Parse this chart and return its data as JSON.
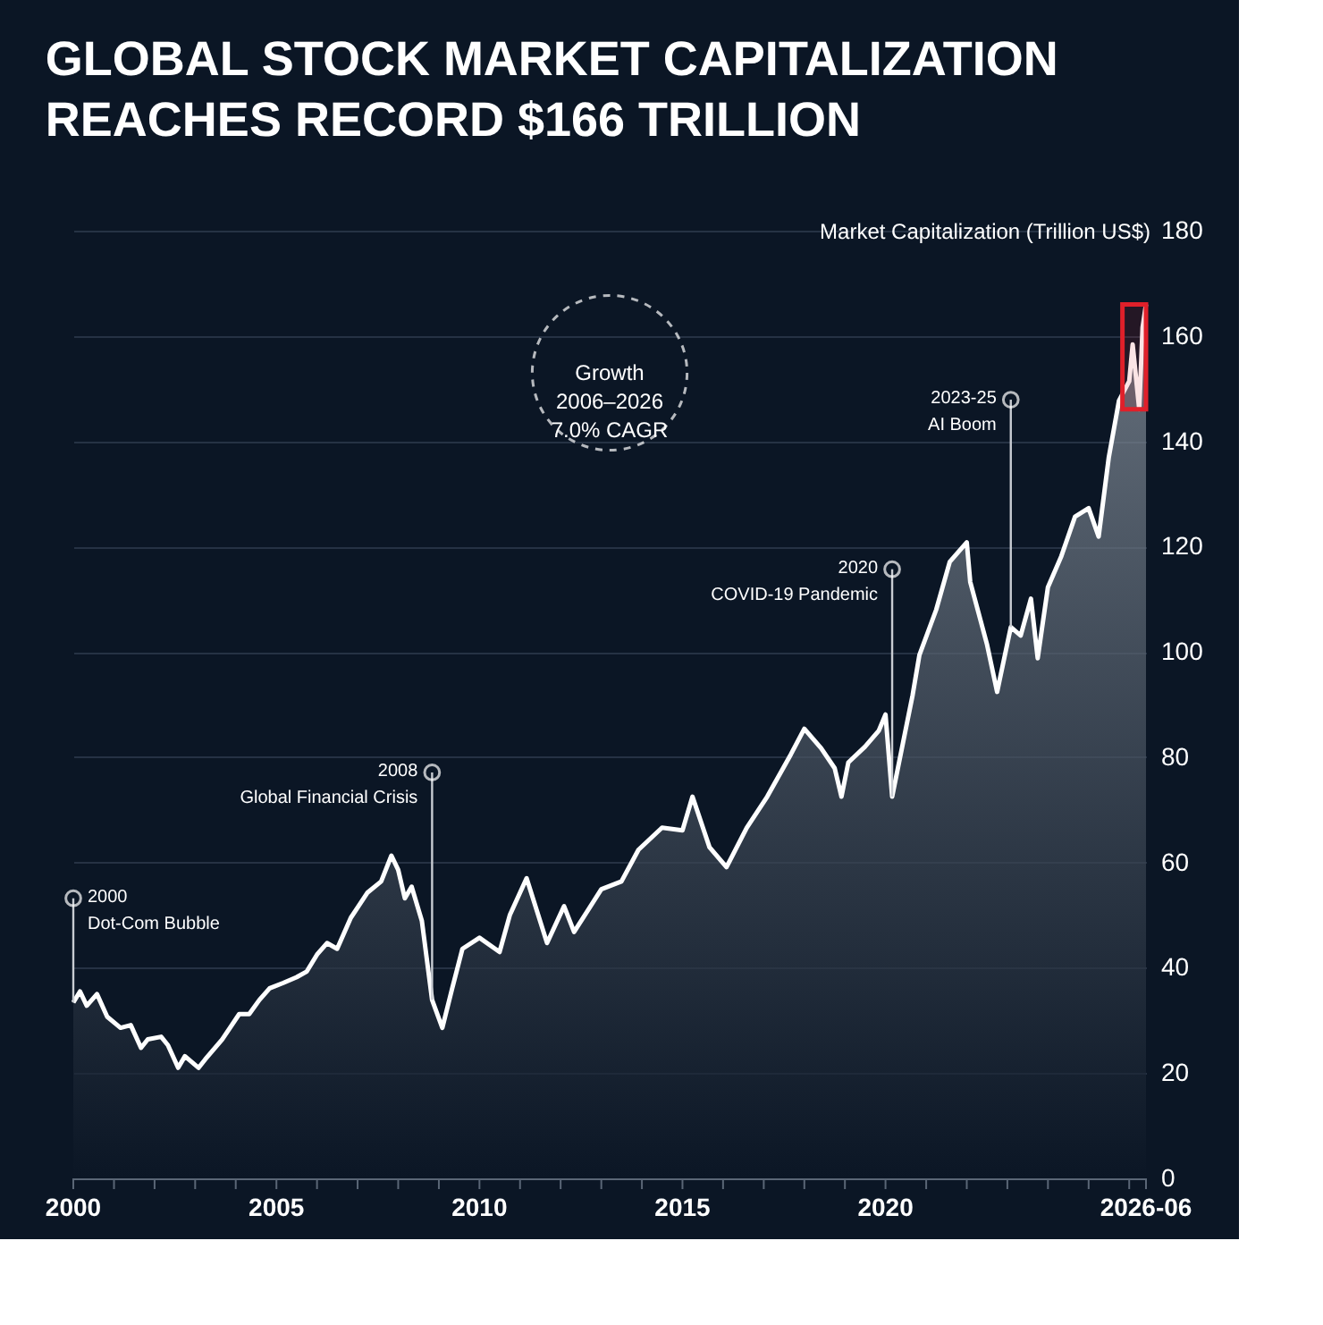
{
  "chart_data": {
    "type": "area",
    "title": "GLOBAL STOCK MARKET CAPITALIZATION REACHES RECORD $166 TRILLION",
    "ylabel": "Market Capitalization (Trillion US$)",
    "x": [
      "2000-01",
      "2000-03",
      "2000-05",
      "2000-08",
      "2000-11",
      "2001-03",
      "2001-06",
      "2001-09",
      "2001-11",
      "2002-03",
      "2002-05",
      "2002-08",
      "2002-10",
      "2003-02",
      "2003-04",
      "2003-09",
      "2004-02",
      "2004-05",
      "2004-08",
      "2004-11",
      "2005-03",
      "2005-07",
      "2005-10",
      "2006-01",
      "2006-04",
      "2006-07",
      "2006-11",
      "2007-04",
      "2007-08",
      "2007-11",
      "2008-01",
      "2008-03",
      "2008-05",
      "2008-08",
      "2008-11",
      "2009-02",
      "2009-05",
      "2009-08",
      "2010-01",
      "2010-07",
      "2010-10",
      "2011-03",
      "2011-09",
      "2012-02",
      "2012-05",
      "2013-01",
      "2013-07",
      "2013-12",
      "2014-07",
      "2015-01",
      "2015-04",
      "2015-09",
      "2016-02",
      "2016-08",
      "2017-02",
      "2017-09",
      "2018-01",
      "2018-06",
      "2018-10",
      "2018-12",
      "2019-02",
      "2019-07",
      "2019-11",
      "2020-01",
      "2020-03",
      "2020-09",
      "2020-11",
      "2021-04",
      "2021-08",
      "2022-01",
      "2022-02",
      "2022-07",
      "2022-10",
      "2023-02",
      "2023-05",
      "2023-08",
      "2023-10",
      "2024-01",
      "2024-05",
      "2024-09",
      "2025-01",
      "2025-04",
      "2025-07",
      "2025-10",
      "2026-01",
      "2026-02",
      "2026-04",
      "2026-05",
      "2026-06"
    ],
    "series": [
      {
        "color": "#ffffff",
        "values": [
          33.4,
          35.5,
          32.8,
          35.0,
          30.7,
          28.6,
          29.1,
          24.8,
          26.4,
          26.9,
          25.3,
          21.0,
          23.2,
          21.0,
          22.6,
          26.4,
          31.2,
          31.2,
          33.9,
          36.1,
          37.1,
          38.2,
          39.3,
          42.5,
          44.7,
          43.6,
          49.5,
          54.3,
          56.4,
          61.3,
          58.6,
          53.2,
          55.4,
          48.9,
          33.9,
          28.6,
          36.1,
          43.6,
          45.7,
          43.0,
          50.0,
          57.0,
          44.7,
          51.7,
          46.8,
          54.9,
          56.4,
          62.4,
          66.6,
          66.1,
          72.5,
          62.9,
          59.1,
          66.6,
          72.5,
          80.5,
          85.4,
          81.7,
          77.9,
          72.5,
          79.0,
          82.0,
          85.0,
          88.1,
          72.5,
          91.8,
          99.4,
          108.0,
          117.1,
          120.8,
          113.3,
          101.5,
          92.4,
          104.7,
          103.1,
          110.1,
          98.8,
          112.3,
          118.2,
          125.7,
          127.3,
          121.9,
          136.9,
          147.7,
          151.4,
          158.4,
          146.1,
          161.6,
          166.0
        ]
      }
    ],
    "xlim": [
      "2000-01",
      "2026-06"
    ],
    "xticks": [
      {
        "value": "2000-01",
        "label": "2000"
      },
      {
        "value": "2001-01",
        "label": null
      },
      {
        "value": "2002-01",
        "label": null
      },
      {
        "value": "2003-01",
        "label": null
      },
      {
        "value": "2004-01",
        "label": null
      },
      {
        "value": "2005-01",
        "label": "2005"
      },
      {
        "value": "2006-01",
        "label": null
      },
      {
        "value": "2007-01",
        "label": null
      },
      {
        "value": "2008-01",
        "label": null
      },
      {
        "value": "2009-01",
        "label": null
      },
      {
        "value": "2010-01",
        "label": "2010"
      },
      {
        "value": "2011-01",
        "label": null
      },
      {
        "value": "2012-01",
        "label": null
      },
      {
        "value": "2013-01",
        "label": null
      },
      {
        "value": "2014-01",
        "label": null
      },
      {
        "value": "2015-01",
        "label": "2015"
      },
      {
        "value": "2016-01",
        "label": null
      },
      {
        "value": "2017-01",
        "label": null
      },
      {
        "value": "2018-01",
        "label": null
      },
      {
        "value": "2019-01",
        "label": null
      },
      {
        "value": "2020-01",
        "label": "2020"
      },
      {
        "value": "2021-01",
        "label": null
      },
      {
        "value": "2022-01",
        "label": null
      },
      {
        "value": "2023-01",
        "label": null
      },
      {
        "value": "2024-01",
        "label": null
      },
      {
        "value": "2025-01",
        "label": null
      },
      {
        "value": "2026-01",
        "label": null
      },
      {
        "value": "2026-06",
        "label": "2026-06"
      }
    ],
    "ylim": [
      0,
      180
    ],
    "yticks": [
      0,
      20,
      40,
      60,
      80,
      100,
      120,
      140,
      160,
      180
    ],
    "grid": "y",
    "annotations": [
      "Growth\n2006–2026\n7.0% CAGR",
      {
        "text": "2000\nDot-Com Bubble",
        "x": "2000-01",
        "y": 33.4
      },
      {
        "text": "2008\nGlobal Financial Crisis",
        "x": "2008-11",
        "y": 33.9
      },
      {
        "text": "2020\nCOVID-19 Pandemic",
        "x": "2020-03",
        "y": 72.5
      },
      {
        "text": "2023-25\nAI Boom",
        "x": "2023-02",
        "y": 104.7
      }
    ],
    "bands": [
      {
        "axis": "x",
        "from": "2025-11",
        "to": "2026-06",
        "color": "#e0202a"
      }
    ]
  }
}
